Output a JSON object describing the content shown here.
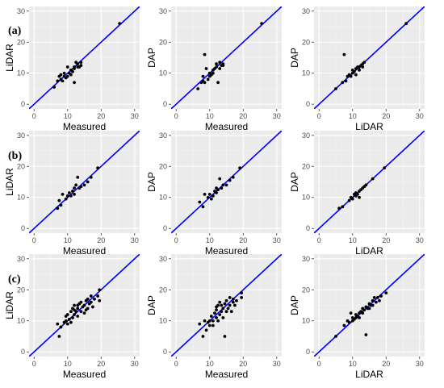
{
  "figure": {
    "row_labels": [
      "(a)",
      "(b)",
      "(c)"
    ]
  },
  "colors": {
    "panel_background": "#ebebeb",
    "grid_major": "#ffffff",
    "grid_minor": "#f5f5f5",
    "identity_line": "#0000ff",
    "points": "#000000",
    "tick_text": "#4d4d4d"
  },
  "chart_data": [
    {
      "type": "scatter",
      "row": "(a)",
      "xlabel": "Measured",
      "ylabel": "LiDAR",
      "xlim": [
        -1.5,
        31.5
      ],
      "ylim": [
        -1.5,
        31.5
      ],
      "x_ticks": [
        0,
        10,
        20,
        30
      ],
      "y_ticks": [
        0,
        10,
        20,
        30
      ],
      "grid": true,
      "reference_line": "y = x",
      "points": [
        [
          6,
          5.5
        ],
        [
          7,
          7.5
        ],
        [
          7.5,
          9
        ],
        [
          8,
          9.5
        ],
        [
          8,
          8
        ],
        [
          8.5,
          7.5
        ],
        [
          9,
          9
        ],
        [
          9,
          10
        ],
        [
          9.5,
          8.5
        ],
        [
          10,
          9
        ],
        [
          10,
          12
        ],
        [
          10.5,
          10
        ],
        [
          11,
          9.5
        ],
        [
          11,
          11
        ],
        [
          11.5,
          10.5
        ],
        [
          12,
          12
        ],
        [
          12,
          11.5
        ],
        [
          12,
          7
        ],
        [
          12.5,
          13.5
        ],
        [
          13,
          12
        ],
        [
          13,
          13
        ],
        [
          13.5,
          12
        ],
        [
          14,
          13.5
        ],
        [
          14,
          12.5
        ],
        [
          25.5,
          26
        ]
      ]
    },
    {
      "type": "scatter",
      "row": "(a)",
      "xlabel": "Measured",
      "ylabel": "DAP",
      "xlim": [
        -1.5,
        31.5
      ],
      "ylim": [
        -1.5,
        31.5
      ],
      "x_ticks": [
        0,
        10,
        20,
        30
      ],
      "y_ticks": [
        0,
        10,
        20,
        30
      ],
      "grid": true,
      "reference_line": "y = x",
      "points": [
        [
          6.5,
          5
        ],
        [
          7.5,
          7
        ],
        [
          8,
          9
        ],
        [
          8,
          7.5
        ],
        [
          8.5,
          7
        ],
        [
          8.5,
          16
        ],
        [
          9,
          11.5
        ],
        [
          9.5,
          8
        ],
        [
          10,
          9
        ],
        [
          10,
          10
        ],
        [
          10.5,
          9.5
        ],
        [
          11,
          10
        ],
        [
          11,
          11
        ],
        [
          11.5,
          11.5
        ],
        [
          12,
          12
        ],
        [
          12,
          13
        ],
        [
          12.5,
          7
        ],
        [
          13,
          13.5
        ],
        [
          13,
          11.5
        ],
        [
          13.5,
          12.5
        ],
        [
          14,
          12.5
        ],
        [
          14,
          13
        ],
        [
          25.5,
          26
        ]
      ]
    },
    {
      "type": "scatter",
      "row": "(a)",
      "xlabel": "LiDAR",
      "ylabel": "DAP",
      "xlim": [
        -1.5,
        31.5
      ],
      "ylim": [
        -1.5,
        31.5
      ],
      "x_ticks": [
        0,
        10,
        20,
        30
      ],
      "y_ticks": [
        0,
        10,
        20,
        30
      ],
      "grid": true,
      "reference_line": "y = x",
      "points": [
        [
          5,
          5
        ],
        [
          7,
          7
        ],
        [
          7.5,
          16
        ],
        [
          8,
          7.5
        ],
        [
          8.5,
          9
        ],
        [
          9,
          9.5
        ],
        [
          9.5,
          9
        ],
        [
          10,
          10
        ],
        [
          10,
          11
        ],
        [
          10.5,
          10.5
        ],
        [
          11,
          11.5
        ],
        [
          11,
          9.5
        ],
        [
          11.5,
          12
        ],
        [
          12,
          12
        ],
        [
          12,
          11
        ],
        [
          12.5,
          12.5
        ],
        [
          13,
          13
        ],
        [
          13,
          12
        ],
        [
          13.5,
          13.5
        ],
        [
          26,
          26
        ]
      ]
    },
    {
      "type": "scatter",
      "row": "(b)",
      "xlabel": "Measured",
      "ylabel": "LiDAR",
      "xlim": [
        -1.5,
        31.5
      ],
      "ylim": [
        -1.5,
        31.5
      ],
      "x_ticks": [
        0,
        10,
        20,
        30
      ],
      "y_ticks": [
        0,
        10,
        20,
        30
      ],
      "grid": true,
      "reference_line": "y = x",
      "points": [
        [
          7,
          6.5
        ],
        [
          7.5,
          9
        ],
        [
          8,
          7.5
        ],
        [
          8.5,
          11
        ],
        [
          9.5,
          9.5
        ],
        [
          10,
          10.5
        ],
        [
          10.5,
          11.5
        ],
        [
          11,
          10.5
        ],
        [
          11.5,
          12
        ],
        [
          12,
          13
        ],
        [
          12,
          11
        ],
        [
          12.5,
          14
        ],
        [
          13,
          16.5
        ],
        [
          13.5,
          13
        ],
        [
          14,
          13.5
        ],
        [
          15,
          14
        ],
        [
          16,
          15
        ],
        [
          17,
          16.5
        ],
        [
          19,
          19.5
        ]
      ]
    },
    {
      "type": "scatter",
      "row": "(b)",
      "xlabel": "Measured",
      "ylabel": "DAP",
      "xlim": [
        -1.5,
        31.5
      ],
      "ylim": [
        -1.5,
        31.5
      ],
      "x_ticks": [
        0,
        10,
        20,
        30
      ],
      "y_ticks": [
        0,
        10,
        20,
        30
      ],
      "grid": true,
      "reference_line": "y = x",
      "points": [
        [
          7,
          8.5
        ],
        [
          8,
          7
        ],
        [
          8.5,
          11
        ],
        [
          9.5,
          10
        ],
        [
          10,
          11
        ],
        [
          10.5,
          9.5
        ],
        [
          11,
          10.5
        ],
        [
          11.5,
          12
        ],
        [
          12,
          11.5
        ],
        [
          12,
          13
        ],
        [
          12.5,
          12.5
        ],
        [
          13,
          16
        ],
        [
          13.5,
          13
        ],
        [
          14,
          14
        ],
        [
          15,
          14
        ],
        [
          16,
          15.5
        ],
        [
          17,
          16.5
        ],
        [
          19,
          19.5
        ]
      ]
    },
    {
      "type": "scatter",
      "row": "(b)",
      "xlabel": "LiDAR",
      "ylabel": "DAP",
      "xlim": [
        -1.5,
        31.5
      ],
      "ylim": [
        -1.5,
        31.5
      ],
      "x_ticks": [
        0,
        10,
        20,
        30
      ],
      "y_ticks": [
        0,
        10,
        20,
        30
      ],
      "grid": true,
      "reference_line": "y = x",
      "points": [
        [
          6,
          6.5
        ],
        [
          7,
          7
        ],
        [
          9,
          9
        ],
        [
          9.5,
          10
        ],
        [
          10,
          9.5
        ],
        [
          10.5,
          11
        ],
        [
          11,
          10.5
        ],
        [
          11,
          11.5
        ],
        [
          11.5,
          11
        ],
        [
          12,
          12
        ],
        [
          12,
          10
        ],
        [
          12.5,
          12.5
        ],
        [
          13,
          13
        ],
        [
          13.5,
          13.5
        ],
        [
          14,
          14
        ],
        [
          16,
          16
        ],
        [
          19.5,
          19.5
        ]
      ]
    },
    {
      "type": "scatter",
      "row": "(c)",
      "xlabel": "Measured",
      "ylabel": "LiDAR",
      "xlim": [
        -1.5,
        31.5
      ],
      "ylim": [
        -1.5,
        31.5
      ],
      "x_ticks": [
        0,
        10,
        20,
        30
      ],
      "y_ticks": [
        0,
        10,
        20,
        30
      ],
      "grid": true,
      "reference_line": "y = x",
      "points": [
        [
          7,
          9
        ],
        [
          7.5,
          5
        ],
        [
          8,
          8
        ],
        [
          9,
          9.5
        ],
        [
          9.5,
          10
        ],
        [
          9.5,
          11.5
        ],
        [
          10,
          9
        ],
        [
          10,
          12
        ],
        [
          10.5,
          10.5
        ],
        [
          11,
          13
        ],
        [
          11,
          9.5
        ],
        [
          11.5,
          11
        ],
        [
          11.5,
          14
        ],
        [
          12,
          12
        ],
        [
          12,
          15
        ],
        [
          12.5,
          13
        ],
        [
          13,
          11.5
        ],
        [
          13,
          14
        ],
        [
          13.5,
          15.5
        ],
        [
          14,
          13
        ],
        [
          14,
          16
        ],
        [
          14.5,
          14.5
        ],
        [
          15,
          12.5
        ],
        [
          15,
          15
        ],
        [
          15.5,
          16.5
        ],
        [
          16,
          14
        ],
        [
          16,
          17
        ],
        [
          16.5,
          15.5
        ],
        [
          17,
          18
        ],
        [
          17,
          16
        ],
        [
          17.5,
          14.5
        ],
        [
          18,
          17
        ],
        [
          19,
          18
        ],
        [
          19.5,
          20
        ],
        [
          19.5,
          16.5
        ],
        [
          13,
          15
        ],
        [
          12,
          13.5
        ],
        [
          15.5,
          13.5
        ]
      ]
    },
    {
      "type": "scatter",
      "row": "(c)",
      "xlabel": "Measured",
      "ylabel": "DAP",
      "xlim": [
        -1.5,
        31.5
      ],
      "ylim": [
        -1.5,
        31.5
      ],
      "x_ticks": [
        0,
        10,
        20,
        30
      ],
      "y_ticks": [
        0,
        10,
        20,
        30
      ],
      "grid": true,
      "reference_line": "y = x",
      "points": [
        [
          7,
          9
        ],
        [
          8,
          5
        ],
        [
          8.5,
          10
        ],
        [
          9,
          7
        ],
        [
          9.5,
          9.5
        ],
        [
          10,
          10
        ],
        [
          10,
          8.5
        ],
        [
          10.5,
          11.5
        ],
        [
          11,
          10
        ],
        [
          11,
          8.5
        ],
        [
          11.5,
          12.5
        ],
        [
          12,
          11
        ],
        [
          12,
          13.5
        ],
        [
          12.5,
          10
        ],
        [
          12.5,
          15
        ],
        [
          13,
          12
        ],
        [
          13,
          16
        ],
        [
          13.5,
          13
        ],
        [
          14,
          11
        ],
        [
          14,
          14
        ],
        [
          14.5,
          5
        ],
        [
          14.5,
          15.5
        ],
        [
          15,
          13
        ],
        [
          15,
          16.5
        ],
        [
          15.5,
          14
        ],
        [
          16,
          15
        ],
        [
          16,
          17.5
        ],
        [
          16.5,
          13
        ],
        [
          17,
          16
        ],
        [
          17,
          17
        ],
        [
          17.5,
          15
        ],
        [
          18,
          16.5
        ],
        [
          19.5,
          19
        ],
        [
          19.5,
          17.5
        ],
        [
          12,
          14.5
        ],
        [
          13.5,
          15
        ]
      ]
    },
    {
      "type": "scatter",
      "row": "(c)",
      "xlabel": "LiDAR",
      "ylabel": "DAP",
      "xlim": [
        -1.5,
        31.5
      ],
      "ylim": [
        -1.5,
        31.5
      ],
      "x_ticks": [
        0,
        10,
        20,
        30
      ],
      "y_ticks": [
        0,
        10,
        20,
        30
      ],
      "grid": true,
      "reference_line": "y = x",
      "points": [
        [
          5,
          5
        ],
        [
          7.5,
          8.5
        ],
        [
          8.5,
          10
        ],
        [
          9,
          9.5
        ],
        [
          9.5,
          12.5
        ],
        [
          10,
          10
        ],
        [
          10.5,
          10.5
        ],
        [
          11,
          11
        ],
        [
          11,
          12
        ],
        [
          11.5,
          11.5
        ],
        [
          12,
          12.5
        ],
        [
          12,
          11
        ],
        [
          12.5,
          13
        ],
        [
          13,
          12.5
        ],
        [
          13,
          14
        ],
        [
          13.5,
          13.5
        ],
        [
          14,
          5.5
        ],
        [
          14,
          14.5
        ],
        [
          14.5,
          14
        ],
        [
          15,
          15.5
        ],
        [
          15.5,
          15
        ],
        [
          16,
          16.5
        ],
        [
          16,
          15
        ],
        [
          16.5,
          17.5
        ],
        [
          17,
          16
        ],
        [
          17.5,
          17.5
        ],
        [
          18,
          16.5
        ],
        [
          18.5,
          18
        ],
        [
          20,
          19
        ],
        [
          10,
          11
        ],
        [
          15,
          14
        ]
      ]
    }
  ]
}
